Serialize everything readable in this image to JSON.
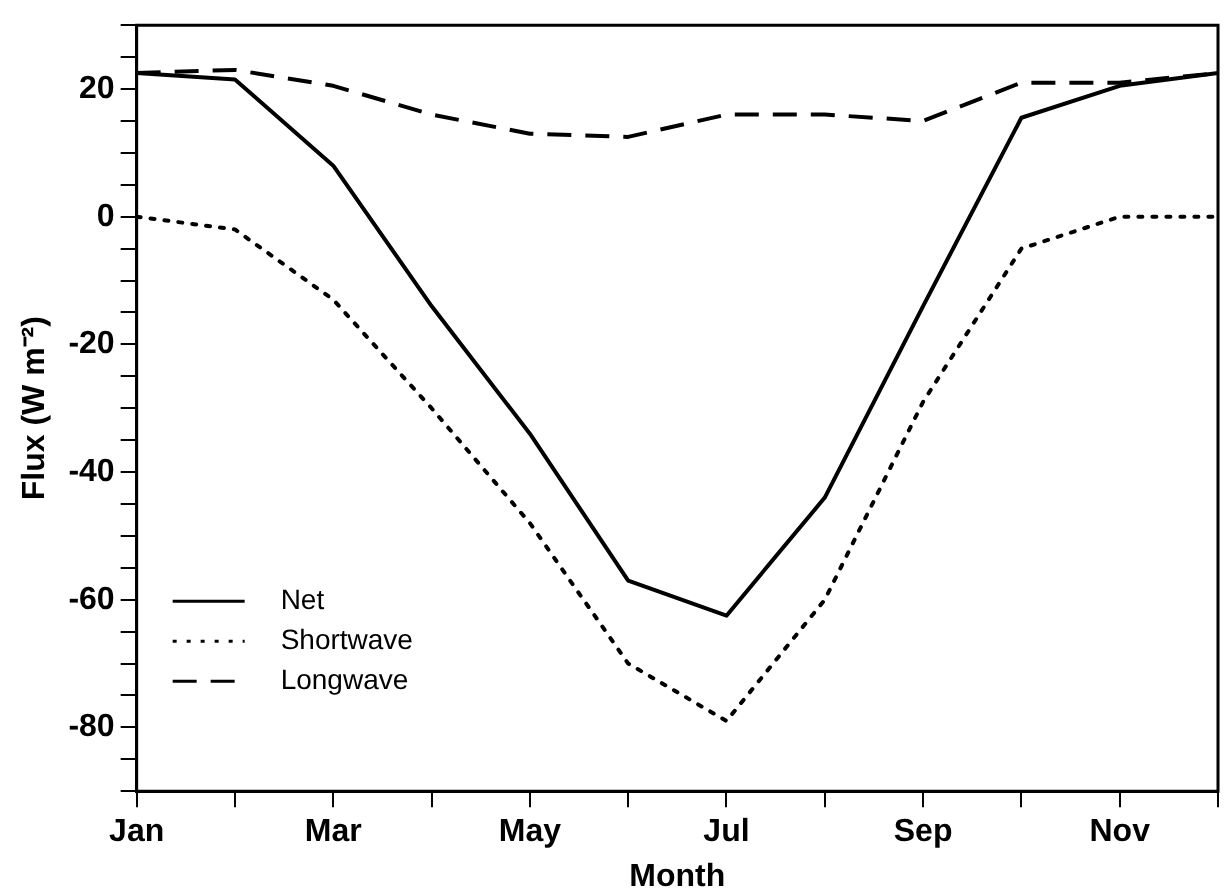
{
  "chart_data": {
    "type": "line",
    "xlabel": "Month",
    "ylabel": "Flux (W m⁻²)",
    "categories": [
      "Jan",
      null,
      "Mar",
      null,
      "May",
      null,
      "Jul",
      null,
      "Sep",
      null,
      "Nov",
      null
    ],
    "ylim": [
      -90,
      30
    ],
    "yticks": [
      {
        "value": -90,
        "label": null
      },
      {
        "value": -85,
        "label": null
      },
      -80,
      {
        "value": -75,
        "label": null
      },
      {
        "value": -70,
        "label": null
      },
      {
        "value": -65,
        "label": null
      },
      -60,
      {
        "value": -55,
        "label": null
      },
      {
        "value": -50,
        "label": null
      },
      {
        "value": -45,
        "label": null
      },
      -40,
      {
        "value": -35,
        "label": null
      },
      {
        "value": -30,
        "label": null
      },
      {
        "value": -25,
        "label": null
      },
      -20,
      {
        "value": -15,
        "label": null
      },
      {
        "value": -10,
        "label": null
      },
      {
        "value": -5,
        "label": null
      },
      0,
      {
        "value": 5,
        "label": null
      },
      {
        "value": 10,
        "label": null
      },
      {
        "value": 15,
        "label": null
      },
      20,
      {
        "value": 25,
        "label": null
      },
      {
        "value": 30,
        "label": null
      }
    ],
    "grid": false,
    "legend": "bottom left",
    "marker": "none",
    "series": [
      {
        "name": "Net",
        "color": "#000000",
        "line_style": "solid",
        "values": [
          22.5,
          21.5,
          8,
          -14,
          -34,
          -57,
          -62.5,
          -44,
          -14,
          15.5,
          20.5,
          22.5
        ]
      },
      {
        "name": "Shortwave",
        "color": "#000000",
        "line_style": "dotted",
        "values": [
          0,
          -2,
          -13,
          -30,
          -48,
          -70,
          -79,
          -60,
          -29,
          -5,
          0,
          0
        ]
      },
      {
        "name": "Longwave",
        "color": "#000000",
        "line_style": "dashed",
        "values": [
          22.5,
          23,
          20.5,
          16,
          13,
          12.5,
          16,
          16,
          15,
          21,
          21,
          22.5
        ]
      }
    ]
  }
}
